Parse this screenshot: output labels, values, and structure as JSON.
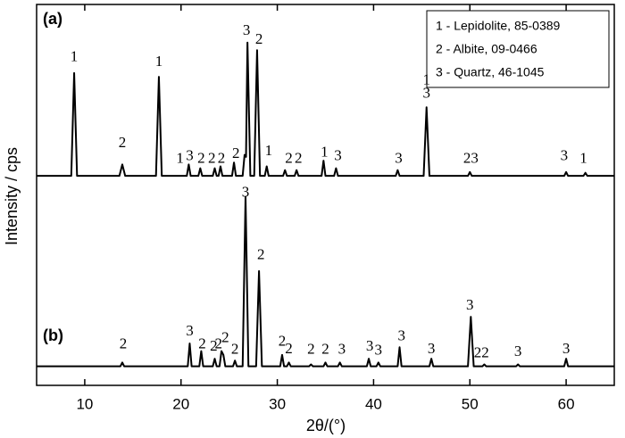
{
  "chart_data": {
    "type": "line",
    "x_label": "2θ/(°)",
    "y_label": "Intensity / cps",
    "xlim": [
      5,
      65
    ],
    "xticks": [
      10,
      20,
      30,
      40,
      50,
      60
    ],
    "ylim": [
      0,
      100
    ],
    "legend": [
      "1 - Lepidolite, 85-0389",
      "2 - Albite, 09-0466",
      "3 - Quartz, 46-1045"
    ],
    "series": [
      {
        "name": "(a)",
        "color": "#000000",
        "x": [
          5,
          8.6,
          8.9,
          9.2,
          13.6,
          13.9,
          14.2,
          17.4,
          17.7,
          18,
          20.6,
          20.8,
          21,
          21.8,
          22,
          22.2,
          23.3,
          23.5,
          23.7,
          23.9,
          24.1,
          24.3,
          25.3,
          25.5,
          25.7,
          26.4,
          26.6,
          26.75,
          26.9,
          27.2,
          27.6,
          27.9,
          28.2,
          28.7,
          28.9,
          29.1,
          30.6,
          30.8,
          31,
          31.8,
          32,
          32.2,
          34.6,
          34.8,
          35,
          35.9,
          36.1,
          36.3,
          42.3,
          42.5,
          42.7,
          45.2,
          45.5,
          45.8,
          49.8,
          50,
          50.2,
          59.8,
          60,
          60.2,
          61.8,
          62,
          62.2,
          65
        ],
        "values": [
          55,
          55,
          82,
          55,
          55,
          58,
          55,
          55,
          81,
          55,
          55,
          58,
          55,
          55,
          57,
          55,
          55,
          57,
          55,
          55,
          57.5,
          55,
          55,
          58.5,
          55,
          55,
          60.5,
          60,
          90,
          55,
          55,
          88,
          55,
          55,
          57.5,
          55,
          55,
          56.5,
          55,
          55,
          56.5,
          55,
          55,
          59,
          55,
          55,
          57,
          55,
          55,
          56.5,
          55,
          55,
          73,
          55,
          55,
          56,
          55,
          55,
          56,
          55,
          55,
          55.8,
          55,
          55
        ]
      },
      {
        "name": "(b)",
        "color": "#000000",
        "x": [
          5,
          13.7,
          13.9,
          14.1,
          20.7,
          20.9,
          21.1,
          21.9,
          22.1,
          22.3,
          23.3,
          23.5,
          23.7,
          24.0,
          24.2,
          24.4,
          24.6,
          25.4,
          25.6,
          25.8,
          26.4,
          26.7,
          27.0,
          27.8,
          28.1,
          28.4,
          30.3,
          30.5,
          30.7,
          31.0,
          31.2,
          31.4,
          33.3,
          33.5,
          33.7,
          34.8,
          35,
          35.2,
          36.3,
          36.5,
          36.7,
          39.3,
          39.5,
          39.7,
          40.3,
          40.5,
          40.7,
          42.5,
          42.7,
          42.9,
          45.8,
          46,
          46.2,
          49.8,
          50.1,
          50.4,
          51.3,
          51.5,
          51.7,
          54.8,
          55,
          55.2,
          59.8,
          60,
          60.2,
          65
        ],
        "values": [
          5,
          5,
          6,
          5,
          5,
          11,
          5,
          5,
          9,
          5,
          5,
          7,
          5,
          5,
          9,
          8,
          5,
          5,
          6.5,
          5,
          5,
          49.5,
          5,
          5,
          30,
          5,
          5,
          8,
          5,
          5,
          6,
          5,
          5,
          5.5,
          5,
          5,
          6,
          5,
          5,
          6,
          5,
          5,
          7,
          5,
          5,
          6,
          5,
          5,
          10,
          5,
          5,
          7,
          5,
          5,
          18,
          5,
          5,
          5.5,
          5,
          5,
          5.5,
          5,
          5,
          7,
          5,
          5
        ]
      }
    ],
    "annotations": [
      {
        "text": "1",
        "x": 8.9,
        "y": 86
      },
      {
        "text": "2",
        "x": 13.9,
        "y": 63.4
      },
      {
        "text": "1",
        "x": 17.7,
        "y": 84.7
      },
      {
        "text": "1",
        "x": 19.9,
        "y": 59.4
      },
      {
        "text": "3",
        "x": 20.9,
        "y": 60
      },
      {
        "text": "2",
        "x": 22.1,
        "y": 59.4
      },
      {
        "text": "2",
        "x": 23.2,
        "y": 59.4
      },
      {
        "text": "2",
        "x": 24.2,
        "y": 59.4
      },
      {
        "text": "2",
        "x": 25.7,
        "y": 60.6
      },
      {
        "text": "3",
        "x": 26.8,
        "y": 93
      },
      {
        "text": "2",
        "x": 28.1,
        "y": 90.6
      },
      {
        "text": "1",
        "x": 29.1,
        "y": 61.3
      },
      {
        "text": "2",
        "x": 31.2,
        "y": 59.4
      },
      {
        "text": "2",
        "x": 32.2,
        "y": 59.4
      },
      {
        "text": "1",
        "x": 34.9,
        "y": 61
      },
      {
        "text": "3",
        "x": 36.3,
        "y": 60
      },
      {
        "text": "3",
        "x": 42.6,
        "y": 59.4
      },
      {
        "text": "1",
        "x": 45.5,
        "y": 80
      },
      {
        "text": "3",
        "x": 45.5,
        "y": 76.4
      },
      {
        "text": "23",
        "x": 50.1,
        "y": 59.4
      },
      {
        "text": "3",
        "x": 59.8,
        "y": 60
      },
      {
        "text": "1",
        "x": 61.8,
        "y": 59.4
      },
      {
        "text": "2",
        "x": 14,
        "y": 10.6
      },
      {
        "text": "3",
        "x": 20.9,
        "y": 14
      },
      {
        "text": "2",
        "x": 22.2,
        "y": 10.6
      },
      {
        "text": "2",
        "x": 23.4,
        "y": 10
      },
      {
        "text": "2",
        "x": 23.9,
        "y": 10.6
      },
      {
        "text": "2",
        "x": 24.6,
        "y": 12.3
      },
      {
        "text": "2",
        "x": 25.6,
        "y": 9.2
      },
      {
        "text": "3",
        "x": 26.7,
        "y": 50.5
      },
      {
        "text": "2",
        "x": 28.3,
        "y": 34
      },
      {
        "text": "2",
        "x": 30.5,
        "y": 11.3
      },
      {
        "text": "2",
        "x": 31.2,
        "y": 9.4
      },
      {
        "text": "2",
        "x": 33.5,
        "y": 9.2
      },
      {
        "text": "2",
        "x": 35,
        "y": 9.2
      },
      {
        "text": "3",
        "x": 36.7,
        "y": 9.2
      },
      {
        "text": "3",
        "x": 39.6,
        "y": 10
      },
      {
        "text": "3",
        "x": 40.5,
        "y": 9
      },
      {
        "text": "3",
        "x": 42.9,
        "y": 12.7
      },
      {
        "text": "3",
        "x": 46,
        "y": 9.4
      },
      {
        "text": "3",
        "x": 50,
        "y": 20.8
      },
      {
        "text": "22",
        "x": 51.2,
        "y": 8.3
      },
      {
        "text": "3",
        "x": 55,
        "y": 8.7
      },
      {
        "text": "3",
        "x": 60,
        "y": 9.4
      }
    ]
  }
}
